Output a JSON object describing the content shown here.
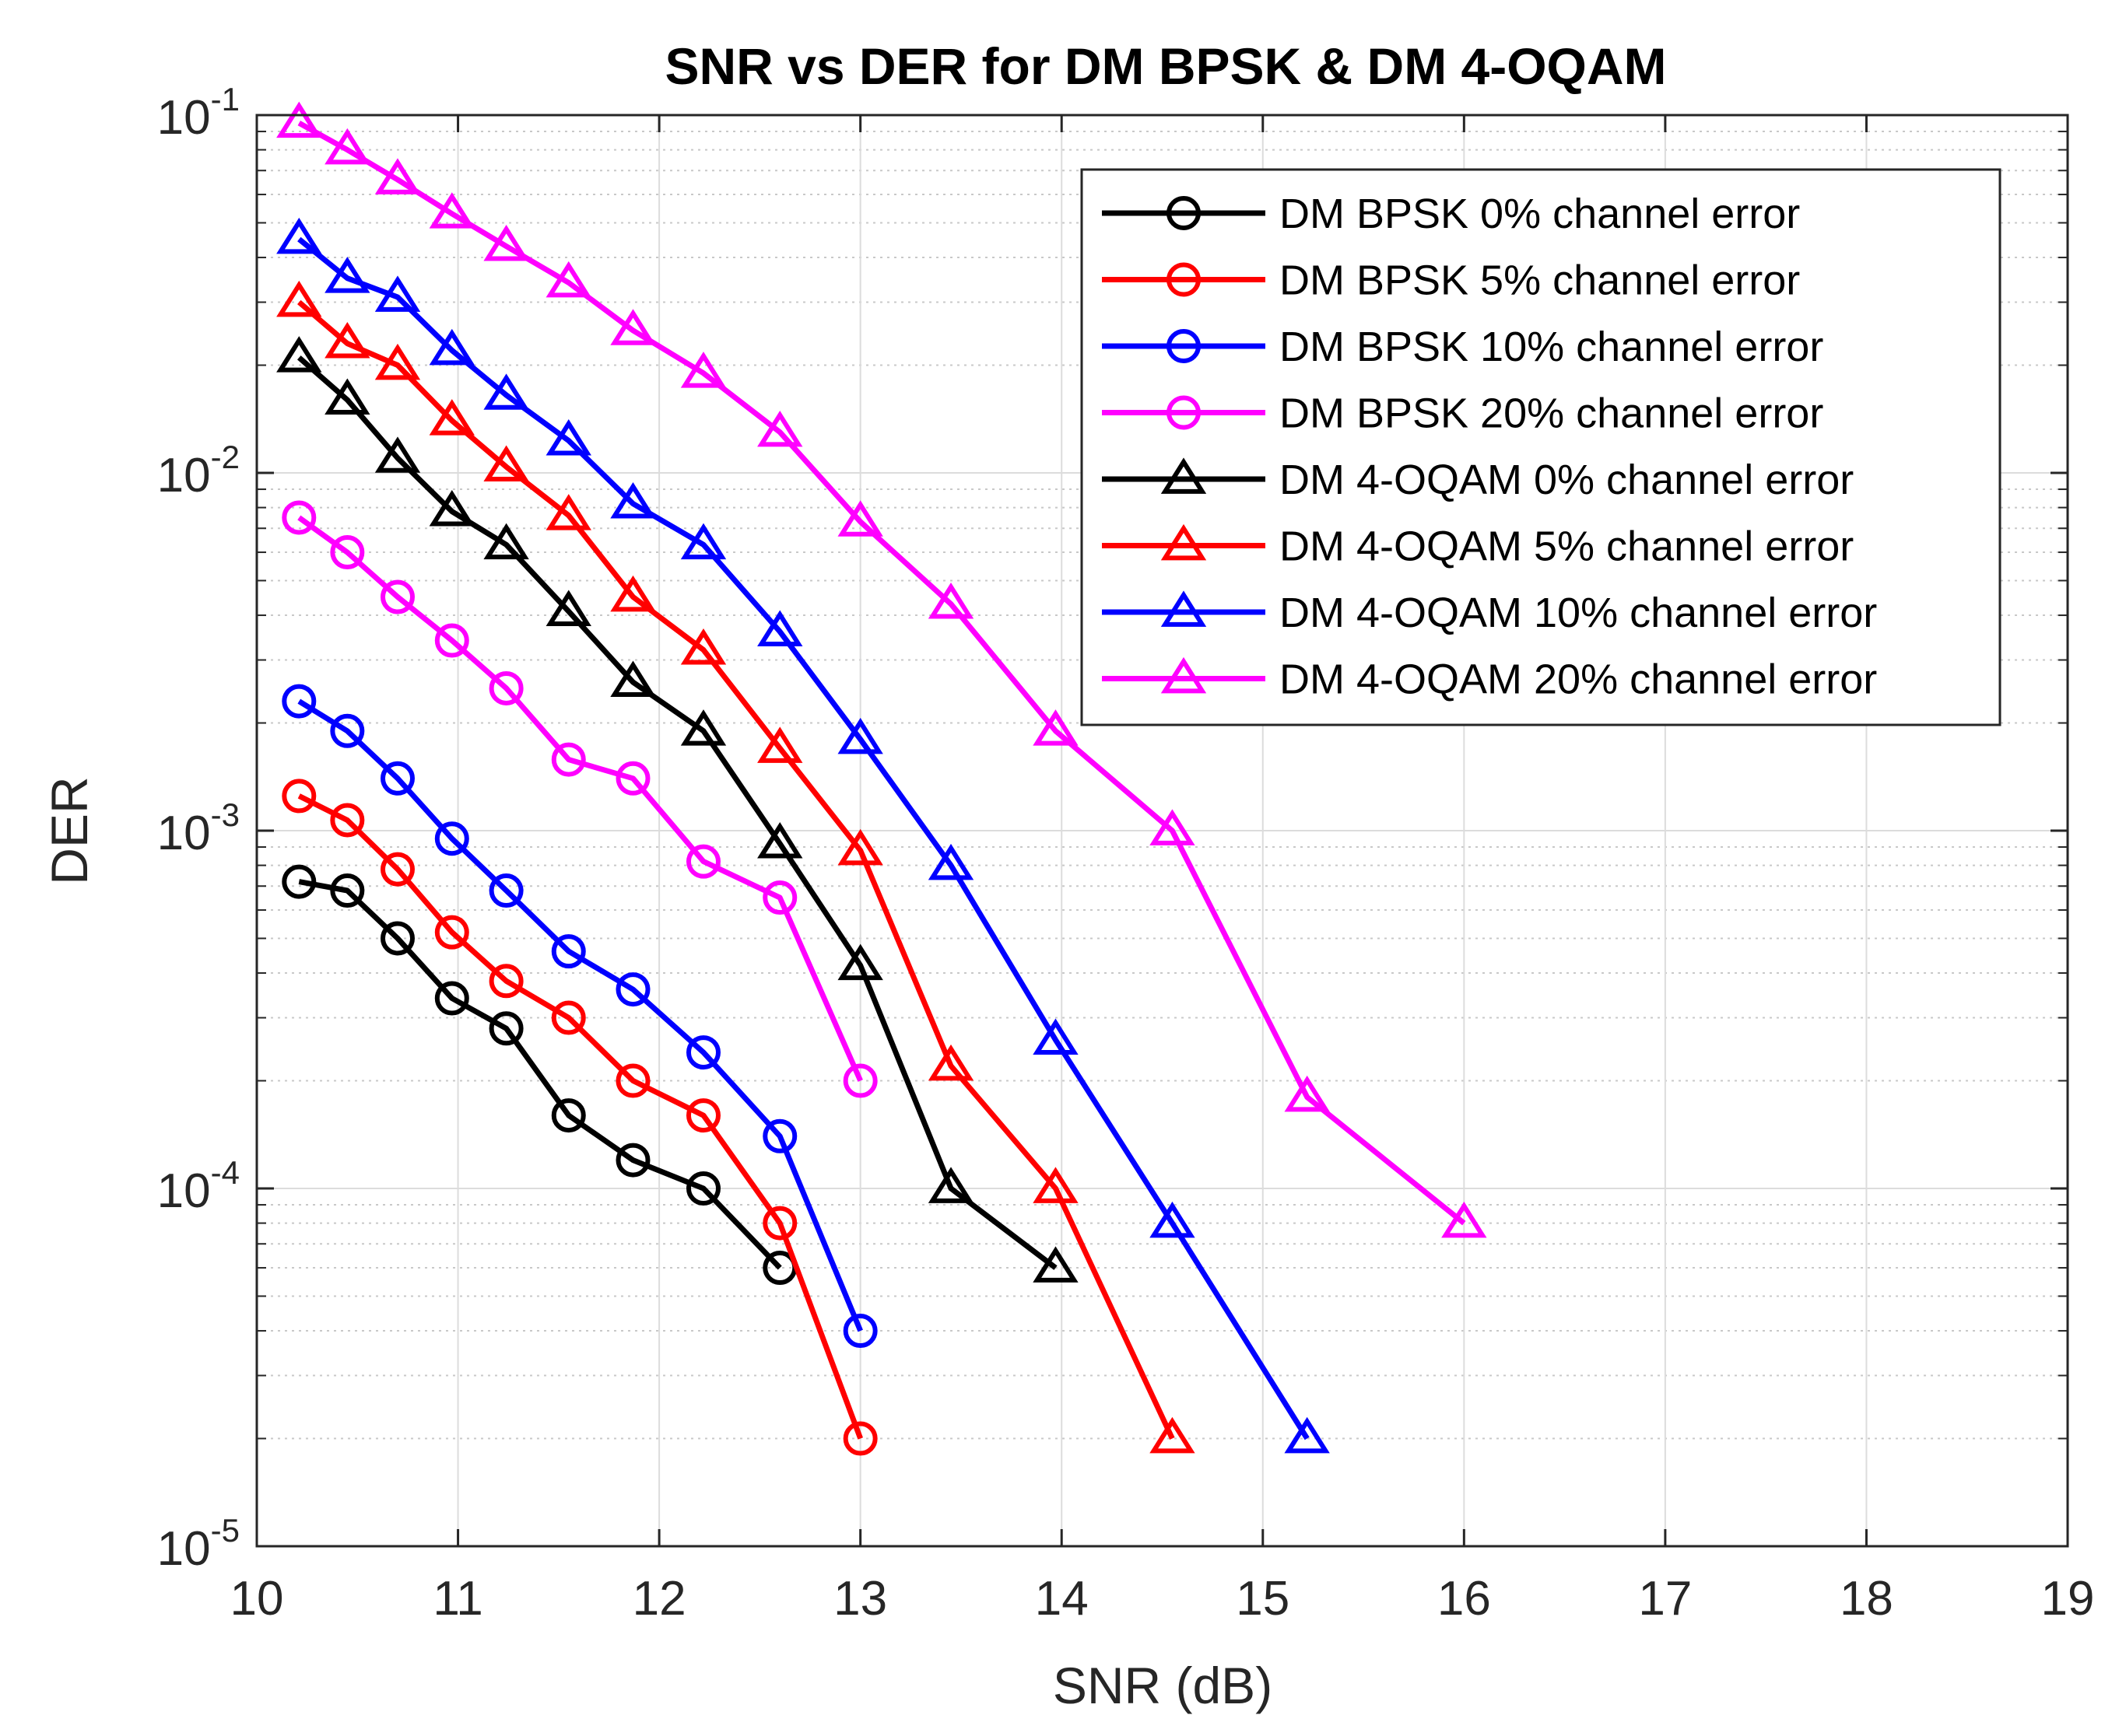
{
  "chart_data": {
    "type": "line",
    "title": "SNR vs DER for DM BPSK & DM 4-OQAM",
    "xlabel": "SNR (dB)",
    "ylabel": "DER",
    "xlim": [
      10,
      19
    ],
    "ylim": [
      1e-05,
      0.1
    ],
    "yscale": "log",
    "grid": true,
    "legend_position": "top-right",
    "x_ticks": [
      10,
      11,
      12,
      13,
      14,
      15,
      16,
      17,
      18,
      19
    ],
    "x_tick_labels": [
      "10",
      "11",
      "12",
      "13",
      "14",
      "15",
      "16",
      "17",
      "18",
      "19"
    ],
    "y_ticks": [
      1e-05,
      0.0001,
      0.001,
      0.01,
      0.1
    ],
    "y_tick_labels": [
      {
        "base": "10",
        "exp": "-5"
      },
      {
        "base": "10",
        "exp": "-4"
      },
      {
        "base": "10",
        "exp": "-3"
      },
      {
        "base": "10",
        "exp": "-2"
      },
      {
        "base": "10",
        "exp": "-1"
      }
    ],
    "series": [
      {
        "name": "DM BPSK 0% channel error",
        "color": "#000000",
        "marker": "circle",
        "x": [
          10.21,
          10.45,
          10.7,
          10.97,
          11.24,
          11.55,
          11.87,
          12.22,
          12.6
        ],
        "y": [
          0.00072,
          0.00068,
          0.0005,
          0.00034,
          0.00028,
          0.00016,
          0.00012,
          0.0001,
          6e-05
        ]
      },
      {
        "name": "DM BPSK 5% channel error",
        "color": "#ff0000",
        "marker": "circle",
        "x": [
          10.21,
          10.45,
          10.7,
          10.97,
          11.24,
          11.55,
          11.87,
          12.22,
          12.6,
          13.0
        ],
        "y": [
          0.00125,
          0.00107,
          0.00078,
          0.00052,
          0.00038,
          0.0003,
          0.0002,
          0.00016,
          8e-05,
          2e-05
        ]
      },
      {
        "name": "DM BPSK 10% channel error",
        "color": "#0000ff",
        "marker": "circle",
        "x": [
          10.21,
          10.45,
          10.7,
          10.97,
          11.24,
          11.55,
          11.87,
          12.22,
          12.6,
          13.0
        ],
        "y": [
          0.0023,
          0.0019,
          0.0014,
          0.00095,
          0.00068,
          0.00046,
          0.00036,
          0.00024,
          0.00014,
          4e-05
        ]
      },
      {
        "name": "DM BPSK 20% channel error",
        "color": "#ff00ff",
        "marker": "circle",
        "x": [
          10.21,
          10.45,
          10.7,
          10.97,
          11.24,
          11.55,
          11.87,
          12.22,
          12.6,
          13.0
        ],
        "y": [
          0.0075,
          0.006,
          0.0045,
          0.0034,
          0.0025,
          0.00158,
          0.0014,
          0.00082,
          0.00065,
          0.0002
        ]
      },
      {
        "name": "DM 4-OQAM 0% channel error",
        "color": "#000000",
        "marker": "triangle",
        "x": [
          10.21,
          10.45,
          10.7,
          10.97,
          11.24,
          11.55,
          11.87,
          12.22,
          12.6,
          13.0,
          13.45,
          13.97
        ],
        "y": [
          0.021,
          0.016,
          0.011,
          0.0078,
          0.0063,
          0.0041,
          0.0026,
          0.0019,
          0.00092,
          0.00042,
          0.0001,
          6e-05
        ]
      },
      {
        "name": "DM 4-OQAM 5% channel error",
        "color": "#ff0000",
        "marker": "triangle",
        "x": [
          10.21,
          10.45,
          10.7,
          10.97,
          11.24,
          11.55,
          11.87,
          12.22,
          12.6,
          13.0,
          13.45,
          13.97,
          14.55
        ],
        "y": [
          0.03,
          0.023,
          0.02,
          0.014,
          0.0104,
          0.0076,
          0.0045,
          0.0032,
          0.0017,
          0.00088,
          0.00022,
          0.0001,
          2e-05
        ]
      },
      {
        "name": "DM 4-OQAM 10% channel error",
        "color": "#0000ff",
        "marker": "triangle",
        "x": [
          10.21,
          10.45,
          10.7,
          10.97,
          11.24,
          11.55,
          11.87,
          12.22,
          12.6,
          13.0,
          13.45,
          13.97,
          14.55,
          15.22
        ],
        "y": [
          0.045,
          0.035,
          0.031,
          0.022,
          0.0165,
          0.0123,
          0.0082,
          0.0063,
          0.0036,
          0.0018,
          0.0008,
          0.00026,
          8e-05,
          2e-05
        ]
      },
      {
        "name": "DM 4-OQAM 20% channel error",
        "color": "#ff00ff",
        "marker": "triangle",
        "x": [
          10.21,
          10.45,
          10.7,
          10.97,
          11.24,
          11.55,
          11.87,
          12.22,
          12.6,
          13.0,
          13.45,
          13.97,
          14.55,
          15.22,
          16.0
        ],
        "y": [
          0.095,
          0.08,
          0.066,
          0.053,
          0.043,
          0.034,
          0.025,
          0.019,
          0.013,
          0.0073,
          0.0043,
          0.0019,
          0.001,
          0.00018,
          8e-05
        ]
      }
    ]
  }
}
